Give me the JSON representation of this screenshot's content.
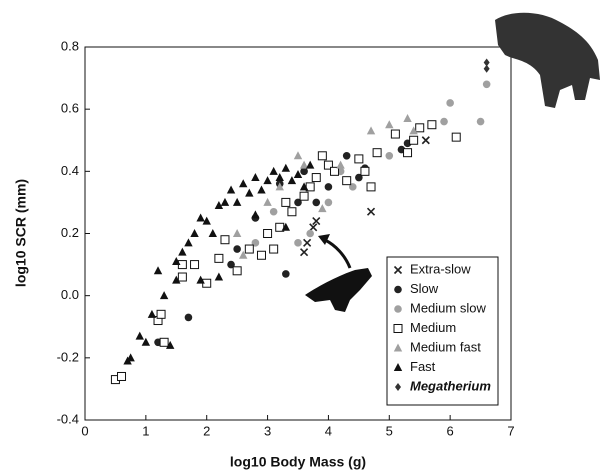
{
  "chart_data": {
    "type": "scatter",
    "xlabel": "log10 Body Mass (g)",
    "ylabel": "log10 SCR (mm)",
    "xlim": [
      0,
      7
    ],
    "xticks": [
      0,
      1,
      2,
      3,
      4,
      5,
      6,
      7
    ],
    "ylim": [
      -0.4,
      0.8
    ],
    "yticks": [
      -0.4,
      -0.2,
      {
        "value": 0,
        "label": "0.0"
      },
      0.2,
      0.4,
      0.6,
      0.8
    ],
    "legend": "lower right",
    "series": [
      {
        "name": "Extra-slow",
        "marker": "x",
        "color": "#222222",
        "x": [
          3.6,
          3.65,
          3.75,
          3.8,
          4.7,
          5.6
        ],
        "values": [
          0.14,
          0.17,
          0.22,
          0.24,
          0.27,
          0.5
        ]
      },
      {
        "name": "Slow",
        "marker": "circle",
        "color": "#222222",
        "x": [
          1.7,
          2.4,
          2.5,
          3.3,
          3.0,
          3.5,
          4.0,
          4.6,
          5.2,
          5.3,
          1.2,
          2.8,
          3.8,
          4.5,
          2.2,
          3.2,
          3.6,
          4.3
        ],
        "values": [
          -0.07,
          0.1,
          0.15,
          0.07,
          0.2,
          0.3,
          0.35,
          0.41,
          0.47,
          0.49,
          -0.15,
          0.25,
          0.3,
          0.38,
          0.12,
          0.36,
          0.4,
          0.45
        ]
      },
      {
        "name": "Medium slow",
        "marker": "circle",
        "color": "#a0a0a0",
        "x": [
          6.0,
          6.6,
          6.5,
          3.5,
          3.7,
          4.0,
          4.2,
          5.9,
          3.1,
          2.8,
          4.4,
          5.0
        ],
        "values": [
          0.62,
          0.68,
          0.56,
          0.17,
          0.2,
          0.3,
          0.4,
          0.56,
          0.27,
          0.17,
          0.35,
          0.45
        ]
      },
      {
        "name": "Medium",
        "marker": "square",
        "color": "#ffffff",
        "x": [
          0.5,
          0.6,
          1.2,
          1.25,
          1.3,
          1.6,
          1.6,
          1.8,
          2.0,
          2.2,
          2.5,
          2.7,
          2.9,
          3.0,
          3.2,
          3.3,
          3.4,
          3.6,
          3.8,
          3.9,
          4.0,
          4.1,
          4.3,
          4.5,
          4.7,
          4.8,
          5.1,
          5.3,
          5.4,
          5.5,
          5.7,
          6.1,
          4.6,
          3.7,
          2.3,
          3.1
        ],
        "values": [
          -0.27,
          -0.26,
          -0.08,
          -0.06,
          -0.15,
          0.06,
          0.1,
          0.1,
          0.04,
          0.12,
          0.08,
          0.15,
          0.13,
          0.2,
          0.22,
          0.3,
          0.27,
          0.32,
          0.38,
          0.45,
          0.42,
          0.4,
          0.37,
          0.44,
          0.35,
          0.46,
          0.52,
          0.46,
          0.5,
          0.54,
          0.55,
          0.51,
          0.4,
          0.35,
          0.18,
          0.15
        ]
      },
      {
        "name": "Medium fast",
        "marker": "triangle",
        "color": "#a0a0a0",
        "x": [
          5.3,
          5.0,
          5.4,
          4.7,
          3.5,
          3.6,
          3.9,
          2.5,
          2.6,
          3.2,
          4.2,
          3.0
        ],
        "values": [
          0.57,
          0.55,
          0.53,
          0.53,
          0.45,
          0.42,
          0.28,
          0.2,
          0.13,
          0.35,
          0.42,
          0.3
        ]
      },
      {
        "name": "Fast",
        "marker": "triangle",
        "color": "#111111",
        "x": [
          0.7,
          0.75,
          0.9,
          1.0,
          1.1,
          1.3,
          1.4,
          1.5,
          1.6,
          1.7,
          1.8,
          1.9,
          2.0,
          2.1,
          2.2,
          2.3,
          2.4,
          2.5,
          2.6,
          2.7,
          2.8,
          2.9,
          3.0,
          3.1,
          3.2,
          3.3,
          3.4,
          3.5,
          3.6,
          3.3,
          2.2,
          1.9,
          2.8,
          3.7,
          1.2,
          1.5
        ],
        "values": [
          -0.21,
          -0.2,
          -0.13,
          -0.15,
          -0.06,
          0.0,
          -0.16,
          0.05,
          0.14,
          0.17,
          0.2,
          0.25,
          0.24,
          0.2,
          0.29,
          0.3,
          0.34,
          0.3,
          0.36,
          0.33,
          0.38,
          0.34,
          0.37,
          0.4,
          0.38,
          0.41,
          0.37,
          0.39,
          0.35,
          0.22,
          0.06,
          0.05,
          0.26,
          0.42,
          0.08,
          0.11
        ]
      },
      {
        "name": "Megatherium",
        "marker": "diamond",
        "color": "#333333",
        "x": [
          6.6,
          6.6
        ],
        "values": [
          0.75,
          0.73
        ]
      }
    ]
  }
}
